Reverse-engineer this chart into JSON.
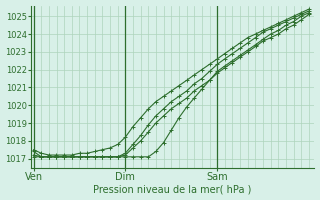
{
  "title": "",
  "xlabel": "Pression niveau de la mer( hPa )",
  "ylabel": "",
  "bg_color": "#d8f0e8",
  "grid_color": "#aed4bc",
  "line_color": "#2d6e2d",
  "marker_color": "#2d6e2d",
  "ylim": [
    1016.5,
    1025.6
  ],
  "yticks": [
    1017,
    1018,
    1019,
    1020,
    1021,
    1022,
    1023,
    1024,
    1025
  ],
  "xtick_labels": [
    "Ven",
    "Dim",
    "Sam"
  ],
  "xtick_positions": [
    0.0,
    0.333,
    0.667
  ],
  "vline_positions": [
    0.0,
    0.333,
    0.667
  ],
  "lines": [
    {
      "x": [
        0.0,
        0.028,
        0.056,
        0.083,
        0.111,
        0.139,
        0.167,
        0.194,
        0.222,
        0.25,
        0.278,
        0.306,
        0.333,
        0.361,
        0.389,
        0.417,
        0.444,
        0.472,
        0.5,
        0.528,
        0.556,
        0.583,
        0.611,
        0.639,
        0.667,
        0.694,
        0.722,
        0.75,
        0.778,
        0.806,
        0.833,
        0.861,
        0.889,
        0.917,
        0.944,
        0.972,
        1.0
      ],
      "y": [
        1017.2,
        1017.1,
        1017.1,
        1017.1,
        1017.1,
        1017.1,
        1017.1,
        1017.1,
        1017.1,
        1017.1,
        1017.1,
        1017.1,
        1017.2,
        1017.6,
        1018.0,
        1018.5,
        1019.0,
        1019.4,
        1019.8,
        1020.1,
        1020.4,
        1020.8,
        1021.1,
        1021.4,
        1021.8,
        1022.1,
        1022.4,
        1022.7,
        1023.0,
        1023.3,
        1023.6,
        1023.8,
        1024.0,
        1024.3,
        1024.5,
        1024.8,
        1025.1
      ]
    },
    {
      "x": [
        0.0,
        0.028,
        0.056,
        0.083,
        0.111,
        0.139,
        0.167,
        0.194,
        0.222,
        0.25,
        0.278,
        0.306,
        0.333,
        0.361,
        0.389,
        0.417,
        0.444,
        0.472,
        0.5,
        0.528,
        0.556,
        0.583,
        0.611,
        0.639,
        0.667,
        0.694,
        0.722,
        0.75,
        0.778,
        0.806,
        0.833,
        0.861,
        0.889,
        0.917,
        0.944,
        0.972,
        1.0
      ],
      "y": [
        1017.1,
        1017.1,
        1017.1,
        1017.1,
        1017.1,
        1017.1,
        1017.1,
        1017.1,
        1017.1,
        1017.1,
        1017.1,
        1017.1,
        1017.3,
        1017.8,
        1018.3,
        1018.9,
        1019.4,
        1019.8,
        1020.2,
        1020.5,
        1020.8,
        1021.2,
        1021.5,
        1021.9,
        1022.3,
        1022.6,
        1022.9,
        1023.2,
        1023.5,
        1023.8,
        1024.1,
        1024.3,
        1024.5,
        1024.7,
        1024.9,
        1025.1,
        1025.3
      ]
    },
    {
      "x": [
        0.0,
        0.028,
        0.056,
        0.083,
        0.111,
        0.139,
        0.167,
        0.194,
        0.222,
        0.25,
        0.278,
        0.306,
        0.333,
        0.361,
        0.389,
        0.417,
        0.444,
        0.472,
        0.5,
        0.528,
        0.556,
        0.583,
        0.611,
        0.639,
        0.667,
        0.694,
        0.722,
        0.75,
        0.778,
        0.806,
        0.833,
        0.861,
        0.889,
        0.917,
        0.944,
        0.972,
        1.0
      ],
      "y": [
        1017.4,
        1017.1,
        1017.1,
        1017.1,
        1017.1,
        1017.1,
        1017.1,
        1017.1,
        1017.1,
        1017.1,
        1017.1,
        1017.1,
        1017.1,
        1017.1,
        1017.1,
        1017.1,
        1017.4,
        1017.9,
        1018.6,
        1019.3,
        1019.9,
        1020.4,
        1020.9,
        1021.4,
        1021.9,
        1022.2,
        1022.5,
        1022.8,
        1023.1,
        1023.4,
        1023.7,
        1024.0,
        1024.2,
        1024.5,
        1024.7,
        1025.0,
        1025.2
      ]
    },
    {
      "x": [
        0.0,
        0.028,
        0.056,
        0.083,
        0.111,
        0.139,
        0.167,
        0.194,
        0.222,
        0.25,
        0.278,
        0.306,
        0.333,
        0.361,
        0.389,
        0.417,
        0.444,
        0.472,
        0.5,
        0.528,
        0.556,
        0.583,
        0.611,
        0.639,
        0.667,
        0.694,
        0.722,
        0.75,
        0.778,
        0.806,
        0.833,
        0.861,
        0.889,
        0.917,
        0.944,
        0.972,
        1.0
      ],
      "y": [
        1017.5,
        1017.3,
        1017.2,
        1017.2,
        1017.2,
        1017.2,
        1017.3,
        1017.3,
        1017.4,
        1017.5,
        1017.6,
        1017.8,
        1018.2,
        1018.8,
        1019.3,
        1019.8,
        1020.2,
        1020.5,
        1020.8,
        1021.1,
        1021.4,
        1021.7,
        1022.0,
        1022.3,
        1022.6,
        1022.9,
        1023.2,
        1023.5,
        1023.8,
        1024.0,
        1024.2,
        1024.4,
        1024.6,
        1024.8,
        1025.0,
        1025.2,
        1025.4
      ]
    }
  ],
  "figsize": [
    3.2,
    2.0
  ],
  "dpi": 100
}
